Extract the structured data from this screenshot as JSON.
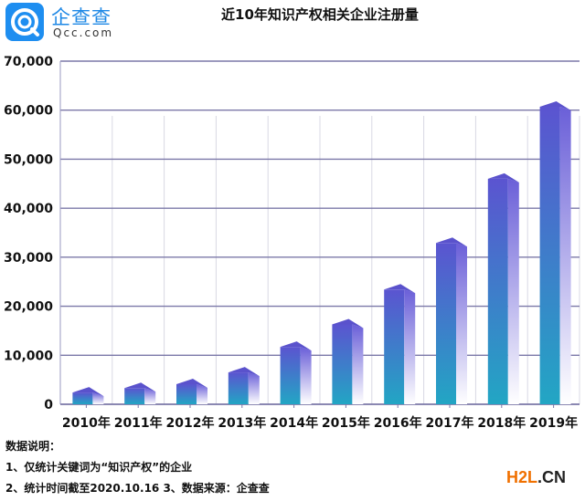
{
  "brand": {
    "name_cn": "企查查",
    "name_en": "Qcc.com",
    "color": "#1e8ef0"
  },
  "chart_data": {
    "type": "bar",
    "title": "近10年知识产权相关企业注册量",
    "xlabel": "",
    "ylabel": "",
    "categories": [
      "2010年",
      "2011年",
      "2012年",
      "2013年",
      "2014年",
      "2015年",
      "2016年",
      "2017年",
      "2018年",
      "2019年"
    ],
    "values": [
      2400,
      3300,
      4100,
      6500,
      11700,
      16300,
      23400,
      32900,
      46000,
      60700
    ],
    "ylim": [
      0,
      70000
    ],
    "yticks": [
      0,
      10000,
      20000,
      30000,
      40000,
      50000,
      60000,
      70000
    ],
    "ytick_labels": [
      "0",
      "10,000",
      "20,000",
      "30,000",
      "40,000",
      "50,000",
      "60,000",
      "70,000"
    ],
    "grid": true,
    "legend": "none",
    "colors": {
      "bar_top": "#5b54d0",
      "bar_bottom": "#22a6c4",
      "gridline": "#7b78a8"
    }
  },
  "notes": {
    "heading": "数据说明：",
    "line1": "1、仅统计关键词为“知识产权”的企业",
    "line2": "2、统计时间截至2020.10.16  3、数据来源：企查查"
  },
  "watermark": {
    "part1": "H2L",
    "part2": ".CN"
  }
}
